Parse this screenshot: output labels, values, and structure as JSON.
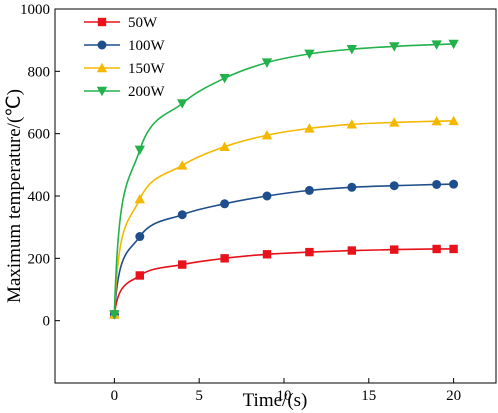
{
  "chart_data": {
    "type": "line",
    "title": "",
    "xlabel": "Time/(s)",
    "ylabel": "Maximum temperature/(℃)",
    "xlim": [
      -3.5,
      22.5
    ],
    "ylim": [
      -200,
      1000
    ],
    "x_ticks": [
      0,
      5,
      10,
      15,
      20
    ],
    "x_tick_labels": [
      "0",
      "5",
      "10",
      "15",
      "20"
    ],
    "y_ticks": [
      0,
      200,
      400,
      600,
      800,
      1000
    ],
    "y_tick_labels": [
      "0",
      "200",
      "400",
      "600",
      "800",
      "1000"
    ],
    "grid": false,
    "legend_position": "top-left",
    "x": [
      0,
      1.5,
      4,
      6.5,
      9,
      11.5,
      14,
      16.5,
      19,
      20
    ],
    "series": [
      {
        "name": "50W",
        "color": "#e8121a",
        "marker": "square",
        "values": [
          20,
          145,
          180,
          200,
          213,
          220,
          225,
          228,
          230,
          230
        ]
      },
      {
        "name": "100W",
        "color": "#1f4e8c",
        "marker": "circle",
        "values": [
          20,
          270,
          340,
          375,
          400,
          418,
          428,
          433,
          437,
          438
        ]
      },
      {
        "name": "150W",
        "color": "#f5b800",
        "marker": "triangle-up",
        "values": [
          20,
          390,
          498,
          558,
          595,
          617,
          630,
          636,
          640,
          641
        ]
      },
      {
        "name": "200W",
        "color": "#22b24c",
        "marker": "triangle-down",
        "values": [
          20,
          548,
          697,
          778,
          828,
          856,
          871,
          880,
          886,
          888
        ]
      }
    ]
  }
}
